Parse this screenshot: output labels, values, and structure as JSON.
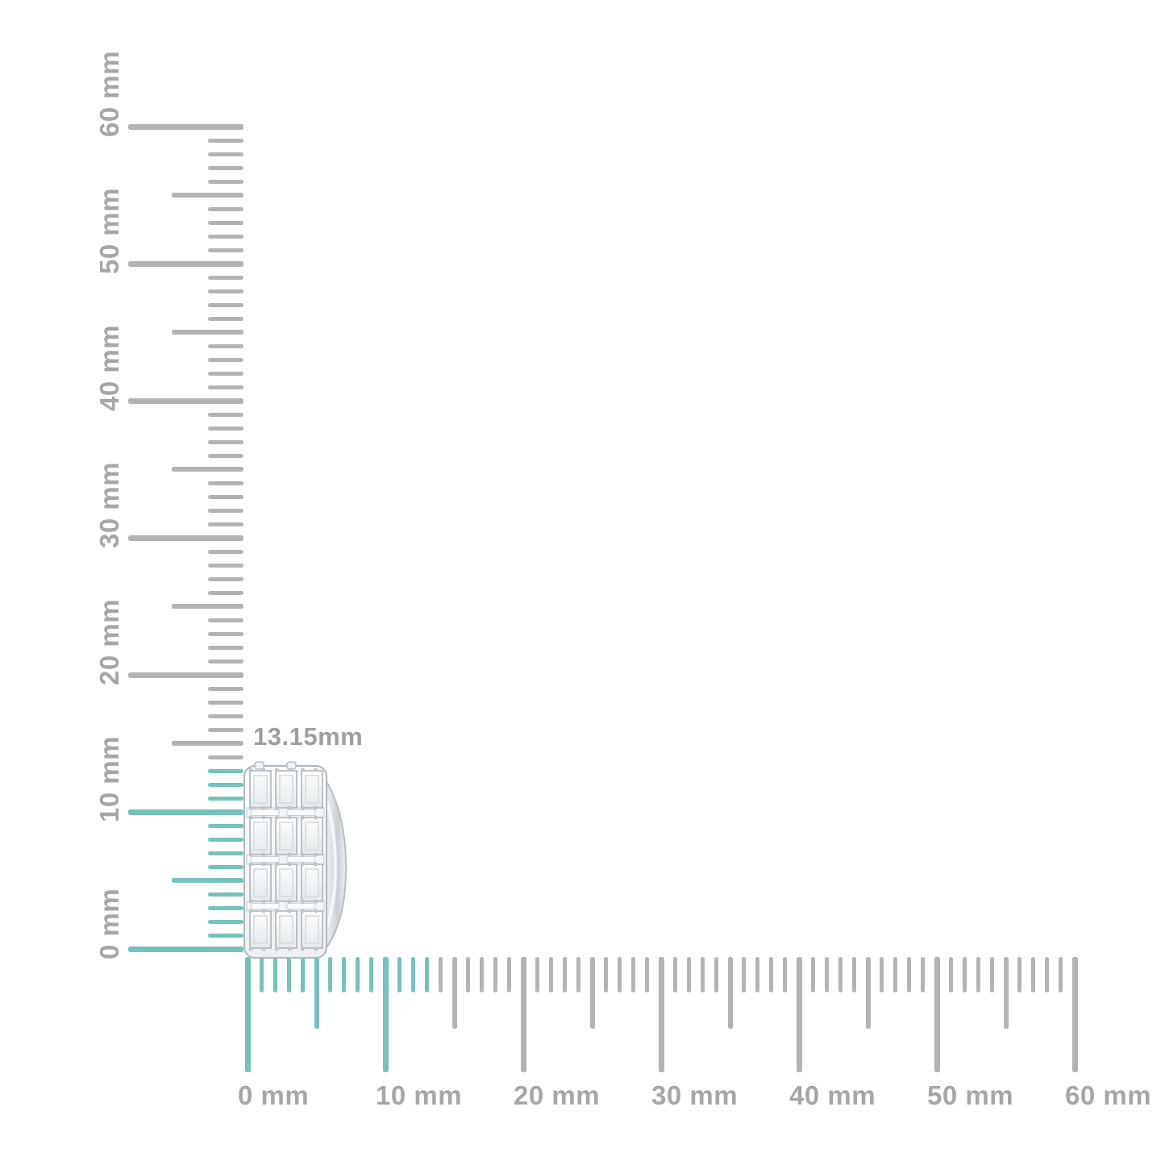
{
  "background_color": "#ffffff",
  "measurement": {
    "text": "13.15mm",
    "color": "#9e9e9e"
  },
  "item": {
    "description": "silver hoop earring set with rows of baguette diamonds, shown against mm rulers"
  },
  "rulers": {
    "unit": "mm",
    "range_mm": [
      0,
      60
    ],
    "major_step_mm": 10,
    "half_step_mm": 5,
    "highlight_mm": 13.15,
    "colors": {
      "highlight": "#74c2bd",
      "tick": "#b3b3b3",
      "label": "#a6a6a6"
    },
    "vertical_labels": [
      "0 mm",
      "10 mm",
      "20 mm",
      "30 mm",
      "40 mm",
      "50 mm",
      "60 mm"
    ],
    "horizontal_labels": [
      "0 mm",
      "10 mm",
      "20 mm",
      "30 mm",
      "40 mm",
      "50 mm",
      "60 mm"
    ]
  }
}
